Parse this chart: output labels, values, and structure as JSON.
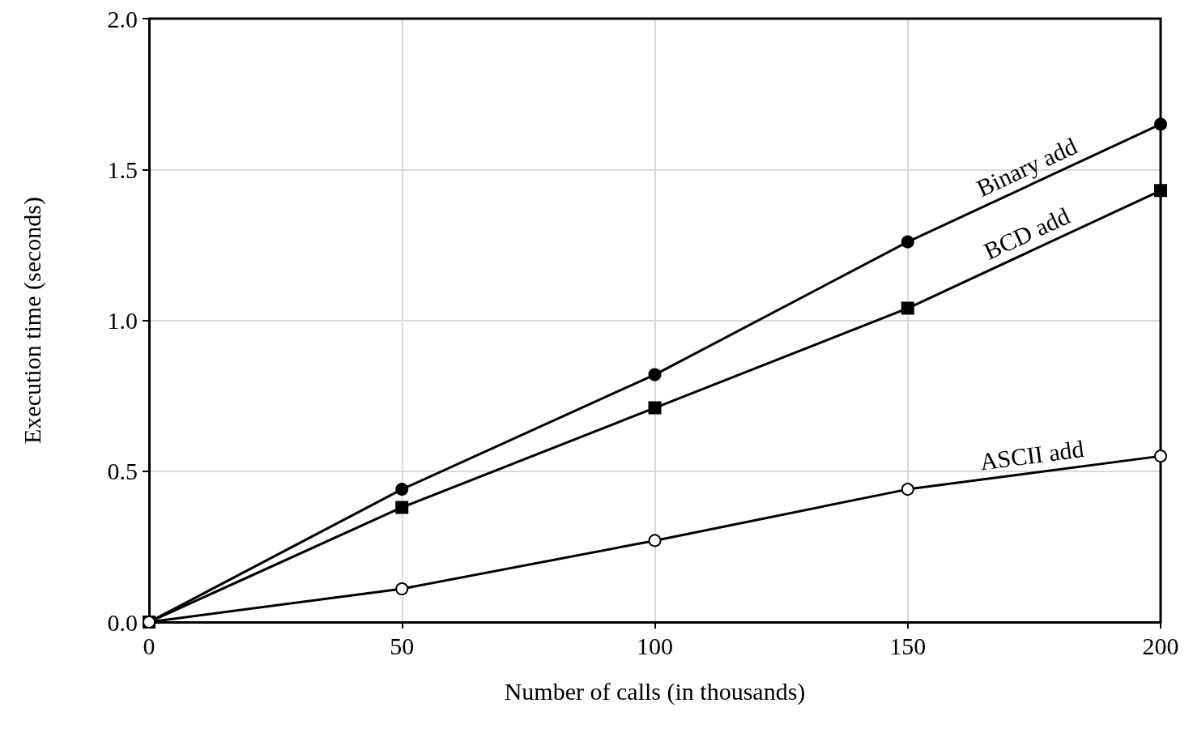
{
  "chart_data": {
    "type": "line",
    "xlabel": "Number of calls (in thousands)",
    "ylabel": "Execution time (seconds)",
    "x": [
      0,
      50,
      100,
      150,
      200
    ],
    "series": [
      {
        "name": "Binary add",
        "color": "#000000",
        "marker": "circle",
        "values": [
          0,
          0.44,
          0.82,
          1.26,
          1.65
        ]
      },
      {
        "name": "BCD add",
        "color": "#000000",
        "marker": "square",
        "values": [
          0,
          0.38,
          0.71,
          1.04,
          1.43
        ]
      },
      {
        "name": "ASCII add",
        "color": "#000000",
        "marker": "circle-open",
        "values": [
          0,
          0.11,
          0.27,
          0.44,
          0.55
        ]
      }
    ],
    "xlim": [
      0,
      200
    ],
    "xticks": [
      0,
      50,
      100,
      150,
      200
    ],
    "ylim": [
      0,
      2
    ],
    "yticks": [
      {
        "value": 0,
        "label": "0.0"
      },
      {
        "value": 0.5,
        "label": "0.5"
      },
      {
        "value": 1,
        "label": "1.0"
      },
      {
        "value": 1.5,
        "label": "1.5"
      },
      {
        "value": 2,
        "label": "2.0"
      }
    ],
    "grid": true,
    "legend": false,
    "line_style": "solid"
  }
}
